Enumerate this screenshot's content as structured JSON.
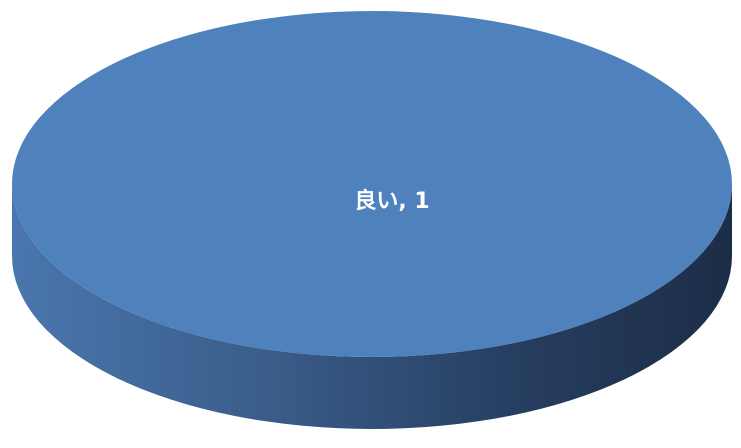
{
  "chart_data": {
    "type": "pie",
    "style": "3d",
    "slices": [
      {
        "name": "良い",
        "value": 1,
        "color": "#4F81BD",
        "data_label": "良い, 1"
      }
    ],
    "legend": "none",
    "title": ""
  },
  "colors": {
    "slice_top": "#4F81BD",
    "side_light": "#4A76AE",
    "side_dark": "#1C2D47"
  }
}
